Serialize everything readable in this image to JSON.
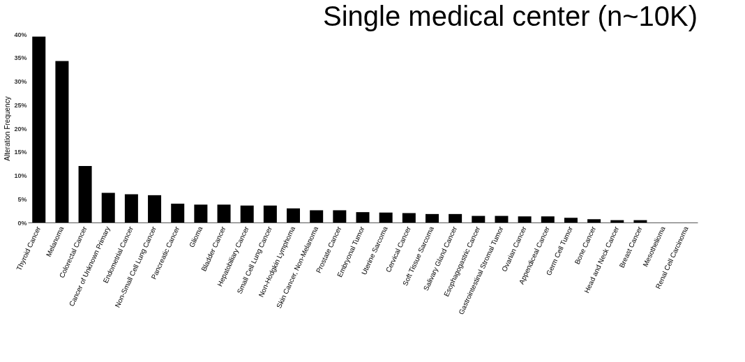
{
  "chart_data": {
    "type": "bar",
    "title": "Single medical center (n~10K)",
    "ylabel": "Alteration Frequency",
    "categories": [
      "Thyroid Cancer",
      "Melanoma",
      "Colorectal Cancer",
      "Cancer of Unknown Primary",
      "Endometrial Cancer",
      "Non-Small Cell Lung Cancer",
      "Pancreatic Cancer",
      "Glioma",
      "Bladder Cancer",
      "Hepatobiliary Cancer",
      "Small Cell Lung Cancer",
      "Non-Hodgkin Lymphoma",
      "Skin Cancer, Non-Melanoma",
      "Prostate Cancer",
      "Embryonal Tumor",
      "Uterine Sarcoma",
      "Cervical Cancer",
      "Soft Tissue Sarcoma",
      "Salivary Gland Cancer",
      "Esophagogastric Cancer",
      "Gastrointestinal Stromal Tumor",
      "Ovarian Cancer",
      "Appendiceal Cancer",
      "Germ Cell Tumor",
      "Bone Cancer",
      "Head and Neck Cancer",
      "Breast Cancer",
      "Mesothelioma",
      "Renal Cell Carcinoma"
    ],
    "values": [
      39.5,
      34.3,
      12.0,
      6.3,
      6.0,
      5.8,
      4.0,
      3.8,
      3.8,
      3.6,
      3.6,
      3.0,
      2.6,
      2.6,
      2.2,
      2.1,
      2.0,
      1.8,
      1.8,
      1.4,
      1.4,
      1.3,
      1.3,
      1.0,
      0.7,
      0.5,
      0.5,
      0,
      0
    ],
    "color": "#000000",
    "ylim": [
      0,
      40
    ],
    "yticks": [
      {
        "value": 0,
        "label": "0%"
      },
      {
        "value": 5,
        "label": "5%"
      },
      {
        "value": 10,
        "label": "10%"
      },
      {
        "value": 15,
        "label": "15%"
      },
      {
        "value": 20,
        "label": "20%"
      },
      {
        "value": 25,
        "label": "25%"
      },
      {
        "value": 30,
        "label": "30%"
      },
      {
        "value": 35,
        "label": "35%"
      },
      {
        "value": 40,
        "label": "40%"
      }
    ],
    "grid": false
  }
}
